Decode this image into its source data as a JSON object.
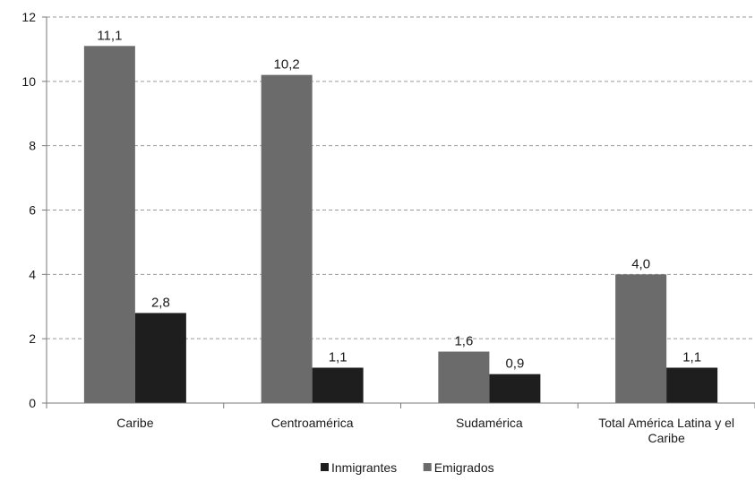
{
  "chart_data": {
    "type": "bar",
    "categories": [
      "Caribe",
      "Centroamérica",
      "Sudamérica",
      "Total América Latina y el Caribe"
    ],
    "series": [
      {
        "name": "Emigrados",
        "values": [
          11.1,
          10.2,
          1.6,
          4.0
        ],
        "labels": [
          "11,1",
          "10,2",
          "1,6",
          "4,0"
        ],
        "color": "#6b6b6b"
      },
      {
        "name": "Inmigrantes",
        "values": [
          2.8,
          1.1,
          0.9,
          1.1
        ],
        "labels": [
          "2,8",
          "1,1",
          "0,9",
          "1,1"
        ],
        "color": "#1e1e1e"
      }
    ],
    "ylim": [
      0,
      12
    ],
    "yticks": [
      0,
      2,
      4,
      6,
      8,
      10,
      12
    ],
    "grid": true,
    "legend": {
      "placement": "bottom",
      "entries": [
        "Inmigrantes",
        "Emigrados"
      ]
    },
    "title": "",
    "xlabel": "",
    "ylabel": ""
  }
}
